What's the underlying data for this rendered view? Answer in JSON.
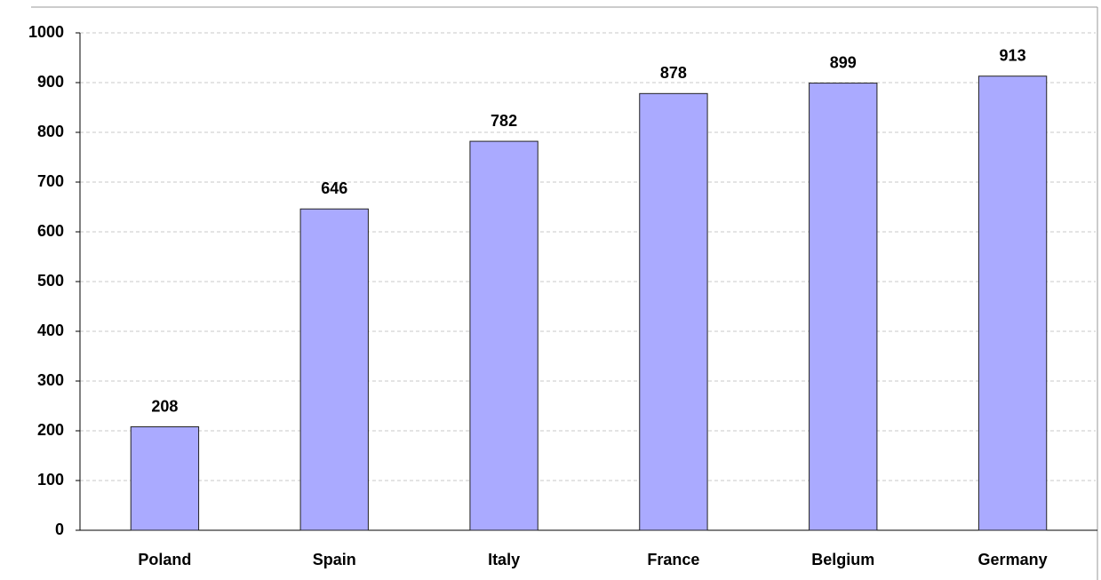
{
  "chart_data": {
    "type": "bar",
    "categories": [
      "Poland",
      "Spain",
      "Italy",
      "France",
      "Belgium",
      "Germany"
    ],
    "values": [
      208,
      646,
      782,
      878,
      899,
      913
    ],
    "color": "#aaaaff",
    "ylim": [
      0,
      1000
    ],
    "yticks": [
      0,
      100,
      200,
      300,
      400,
      500,
      600,
      700,
      800,
      900,
      1000
    ],
    "grid": true
  }
}
